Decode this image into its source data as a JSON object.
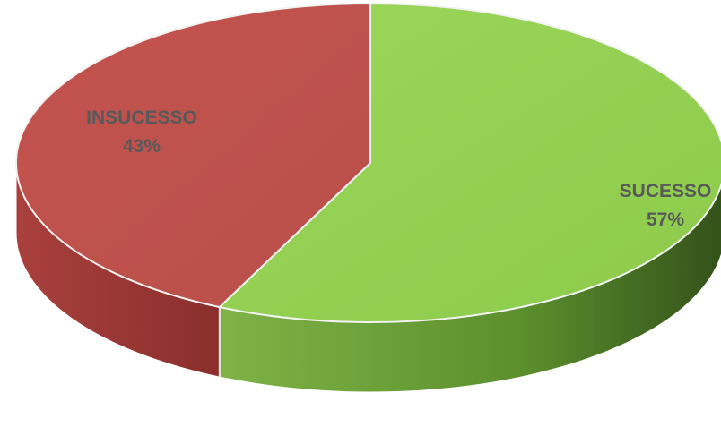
{
  "chart_data": {
    "type": "pie",
    "style": "3d",
    "slices": [
      {
        "label": "SUCESSO",
        "value": 57,
        "value_text": "57%",
        "color": "#92d050",
        "side_color": "#4e7a26"
      },
      {
        "label": "INSUCESSO",
        "value": 43,
        "value_text": "43%",
        "color": "#c0504d",
        "side_color": "#8a3532"
      }
    ],
    "legend": "none",
    "data_labels": "category and percentage"
  }
}
